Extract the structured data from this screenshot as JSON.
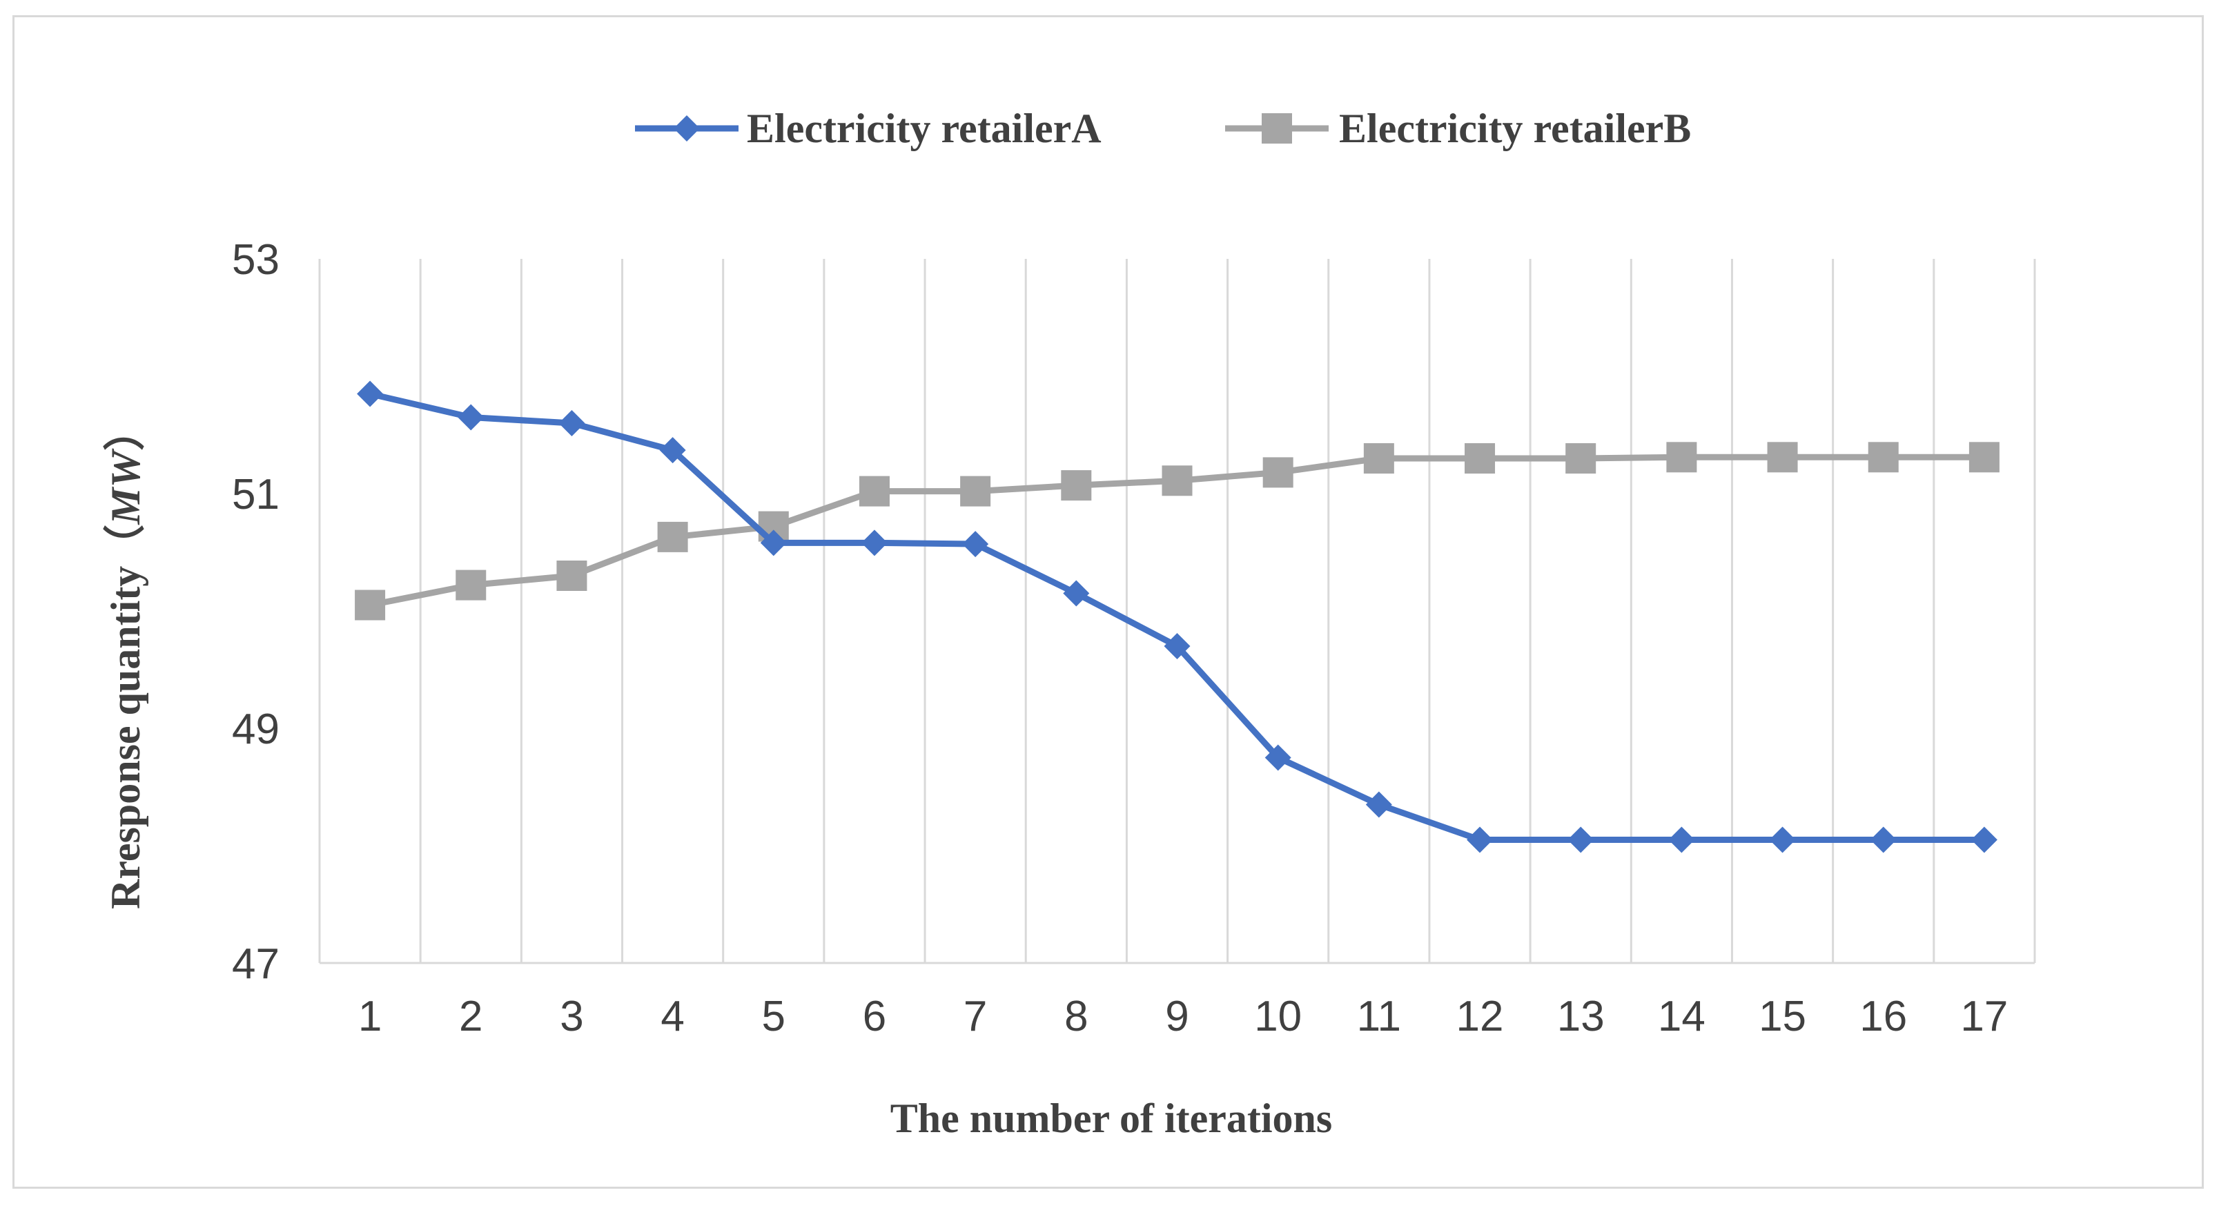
{
  "chart_data": {
    "type": "line",
    "title": "",
    "xlabel": "The number of iterations",
    "ylabel": "Rresponse quantity（MW）",
    "ylabel_main": "Rresponse quantity（",
    "ylabel_unit": "MW",
    "ylabel_close": "）",
    "categories": [
      "1",
      "2",
      "3",
      "4",
      "5",
      "6",
      "7",
      "8",
      "9",
      "10",
      "11",
      "12",
      "13",
      "14",
      "15",
      "16",
      "17"
    ],
    "ylim": [
      47,
      53
    ],
    "yticks": [
      "47",
      "49",
      "51",
      "53"
    ],
    "grid": "vertical",
    "legend_position": "top",
    "series": [
      {
        "name": "Electricity retailerA",
        "color": "#4472C4",
        "marker": "diamond",
        "values": [
          51.85,
          51.65,
          51.6,
          51.37,
          50.58,
          50.58,
          50.57,
          50.15,
          49.7,
          48.75,
          48.35,
          48.05,
          48.05,
          48.05,
          48.05,
          48.05,
          48.05
        ]
      },
      {
        "name": "Electricity retailerB",
        "color": "#A5A5A5",
        "marker": "square",
        "values": [
          50.05,
          50.22,
          50.3,
          50.63,
          50.72,
          51.02,
          51.02,
          51.07,
          51.11,
          51.18,
          51.3,
          51.3,
          51.3,
          51.31,
          51.31,
          51.31,
          51.31
        ]
      }
    ]
  }
}
